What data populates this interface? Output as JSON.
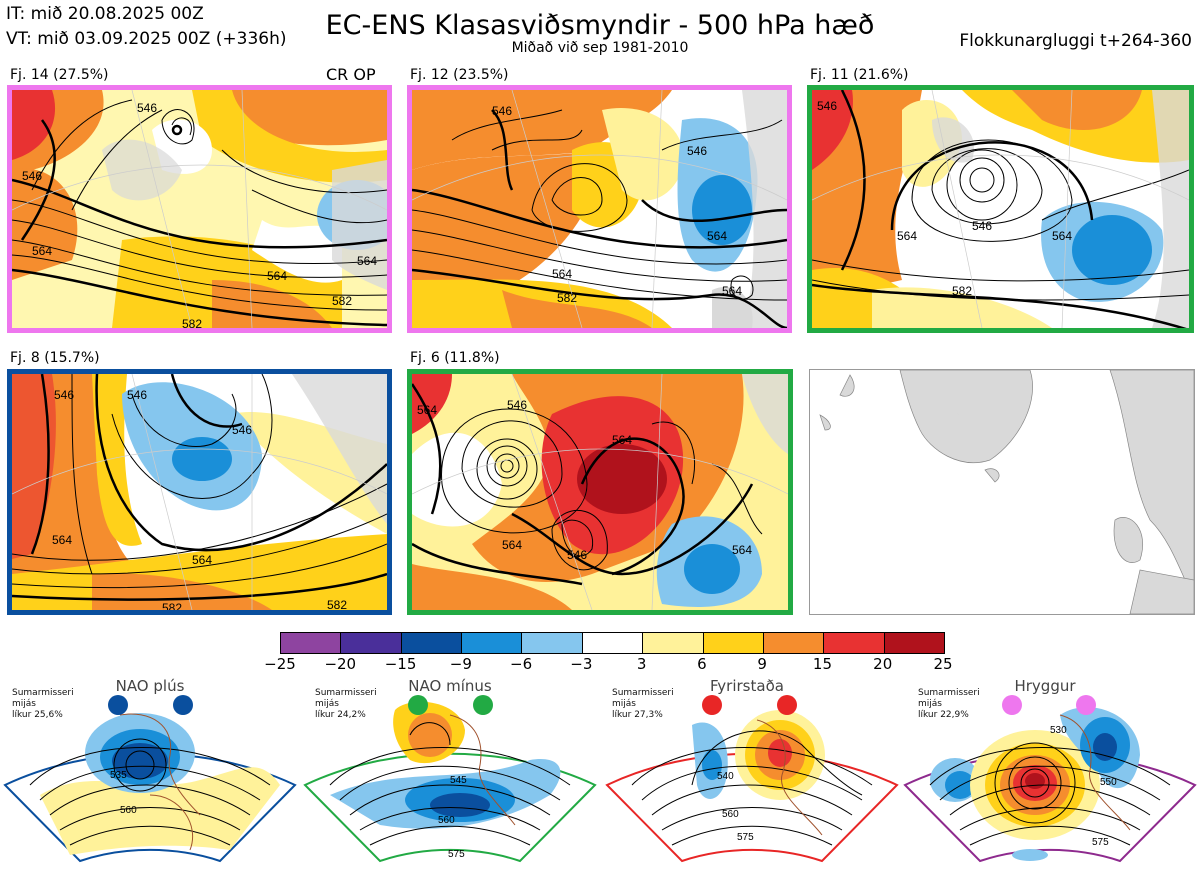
{
  "header": {
    "it": "IT: mið 20.08.2025 00Z",
    "vt": "VT: mið 03.09.2025 00Z  (+336h)",
    "title": "EC-ENS Klasasviðsmyndir - 500 hPa hæð",
    "subtitle": "Miðað við sep 1981-2010",
    "cluster_window": "Flokkunargluggi t+264-360"
  },
  "panels": [
    {
      "label": "Fj. 14 (27.5%)",
      "tag": "CR OP",
      "border": "#ee77ee",
      "contours": [
        "546",
        "564",
        "582",
        "564",
        "564",
        "546",
        "582"
      ]
    },
    {
      "label": "Fj. 12 (23.5%)",
      "tag": "",
      "border": "#ee77ee",
      "contours": [
        "546",
        "564",
        "582",
        "564",
        "546",
        "564"
      ]
    },
    {
      "label": "Fj. 11 (21.6%)",
      "tag": "",
      "border": "#22aa44",
      "contours": [
        "564",
        "546",
        "582",
        "564",
        "546"
      ]
    },
    {
      "label": "Fj. 8 (15.7%)",
      "tag": "",
      "border": "#0a4f9e",
      "contours": [
        "546",
        "582",
        "564",
        "546",
        "564",
        "546",
        "582"
      ]
    },
    {
      "label": "Fj. 6 (11.8%)",
      "tag": "",
      "border": "#22aa44",
      "contours": [
        "546",
        "564",
        "564",
        "546",
        "564",
        "564"
      ]
    }
  ],
  "colorbar": {
    "ticks": [
      "−25",
      "−20",
      "−15",
      "−9",
      "−6",
      "−3",
      "3",
      "6",
      "9",
      "15",
      "20",
      "25"
    ],
    "colors": [
      "#8e44a0",
      "#4a2f9a",
      "#0a4f9e",
      "#1a8fd8",
      "#85c6ee",
      "#ffffff",
      "#fff29a",
      "#ffd11a",
      "#f58d2e",
      "#e83232",
      "#b0121c"
    ]
  },
  "regimes": [
    {
      "name": "NAO plús",
      "info": [
        "Sumarmisseri",
        "mijás",
        "líkur 25,6%"
      ],
      "color": "#0a4f9e",
      "contours": [
        "535",
        "560"
      ]
    },
    {
      "name": "NAO mínus",
      "info": [
        "Sumarmisseri",
        "mijás",
        "líkur 24,2%"
      ],
      "color": "#22aa44",
      "contours": [
        "545",
        "560",
        "575"
      ]
    },
    {
      "name": "Fyrirstaða",
      "info": [
        "Sumarmisseri",
        "mijás",
        "líkur 27,3%"
      ],
      "color": "#e82626",
      "contours": [
        "540",
        "560",
        "575"
      ]
    },
    {
      "name": "Hryggur",
      "info": [
        "Sumarmisseri",
        "mijás",
        "líkur 22,9%"
      ],
      "color": "#ee77ee",
      "contours": [
        "530",
        "550",
        "575"
      ]
    }
  ]
}
